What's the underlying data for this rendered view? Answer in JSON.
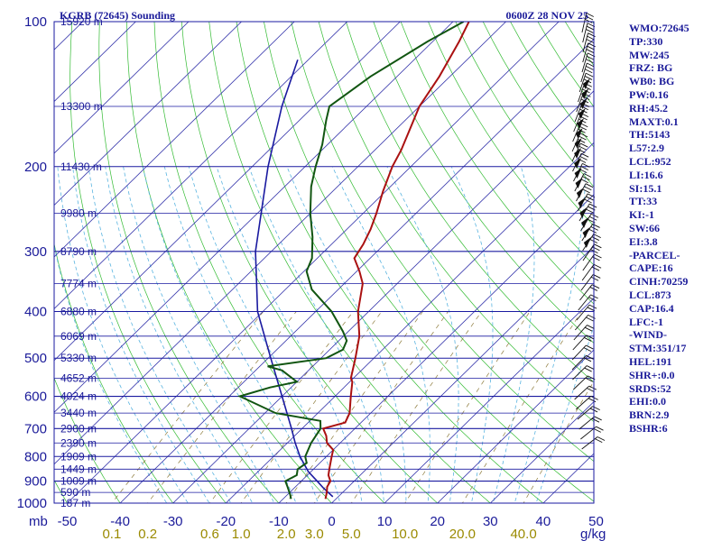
{
  "chart_data": {
    "type": "skew-t",
    "station_label": "KGRB (72645) Sounding",
    "time_label": "0600Z 28 NOV 25",
    "pressure_axis_unit": "mb",
    "pressure_ticks": [
      "100",
      "200",
      "300",
      "400",
      "500",
      "600",
      "700",
      "800",
      "900",
      "1000"
    ],
    "temperature_ticks": [
      "-50",
      "-40",
      "-30",
      "-20",
      "-10",
      "0",
      "10",
      "20",
      "30",
      "40",
      "50"
    ],
    "mixing_ratio_unit": "g/kg",
    "mixing_ratio_ticks": [
      "0.1",
      "0.2",
      "0.6",
      "1.0",
      "2.0",
      "3.0",
      "5.0",
      "10.0",
      "20.0",
      "40.0"
    ],
    "height_labels": [
      {
        "p": 100,
        "text": "15920 m"
      },
      {
        "p": 150,
        "text": "13300 m"
      },
      {
        "p": 200,
        "text": "11430 m"
      },
      {
        "p": 250,
        "text": "9980 m"
      },
      {
        "p": 300,
        "text": "8790 m"
      },
      {
        "p": 350,
        "text": "7774 m"
      },
      {
        "p": 400,
        "text": "6880 m"
      },
      {
        "p": 450,
        "text": "6069 m"
      },
      {
        "p": 500,
        "text": "5330 m"
      },
      {
        "p": 550,
        "text": "4652 m"
      },
      {
        "p": 600,
        "text": "4024 m"
      },
      {
        "p": 650,
        "text": "3440 m"
      },
      {
        "p": 700,
        "text": "2900 m"
      },
      {
        "p": 750,
        "text": "2390 m"
      },
      {
        "p": 800,
        "text": "1909 m"
      },
      {
        "p": 850,
        "text": "1449 m"
      },
      {
        "p": 900,
        "text": "1009 m"
      },
      {
        "p": 950,
        "text": "590 m"
      },
      {
        "p": 1000,
        "text": "187 m"
      }
    ],
    "temperature_profile": [
      {
        "p": 980,
        "t": -2.0
      },
      {
        "p": 950,
        "t": -3.0
      },
      {
        "p": 925,
        "t": -4.0
      },
      {
        "p": 900,
        "t": -4.5
      },
      {
        "p": 875,
        "t": -6.0
      },
      {
        "p": 850,
        "t": -7.0
      },
      {
        "p": 800,
        "t": -9.0
      },
      {
        "p": 775,
        "t": -10.0
      },
      {
        "p": 750,
        "t": -12.5
      },
      {
        "p": 725,
        "t": -14.0
      },
      {
        "p": 700,
        "t": -16.0
      },
      {
        "p": 680,
        "t": -13.0
      },
      {
        "p": 650,
        "t": -14.0
      },
      {
        "p": 600,
        "t": -17.0
      },
      {
        "p": 560,
        "t": -19.5
      },
      {
        "p": 550,
        "t": -20.5
      },
      {
        "p": 500,
        "t": -23.5
      },
      {
        "p": 450,
        "t": -27.0
      },
      {
        "p": 400,
        "t": -32.0
      },
      {
        "p": 350,
        "t": -36.5
      },
      {
        "p": 330,
        "t": -39.5
      },
      {
        "p": 310,
        "t": -43.0
      },
      {
        "p": 290,
        "t": -44.0
      },
      {
        "p": 270,
        "t": -45.5
      },
      {
        "p": 250,
        "t": -47.5
      },
      {
        "p": 225,
        "t": -50.5
      },
      {
        "p": 200,
        "t": -53.5
      },
      {
        "p": 185,
        "t": -55.0
      },
      {
        "p": 170,
        "t": -57.0
      },
      {
        "p": 150,
        "t": -60.0
      },
      {
        "p": 130,
        "t": -62.0
      },
      {
        "p": 110,
        "t": -65.0
      },
      {
        "p": 100,
        "t": -67.0
      }
    ],
    "dewpoint_profile": [
      {
        "p": 980,
        "t": -8.5
      },
      {
        "p": 960,
        "t": -9.5
      },
      {
        "p": 925,
        "t": -11.5
      },
      {
        "p": 900,
        "t": -13.0
      },
      {
        "p": 875,
        "t": -12.0
      },
      {
        "p": 850,
        "t": -13.0
      },
      {
        "p": 825,
        "t": -12.5
      },
      {
        "p": 800,
        "t": -14.0
      },
      {
        "p": 750,
        "t": -15.5
      },
      {
        "p": 700,
        "t": -16.5
      },
      {
        "p": 675,
        "t": -18.0
      },
      {
        "p": 650,
        "t": -28.0
      },
      {
        "p": 600,
        "t": -38.0
      },
      {
        "p": 575,
        "t": -34.0
      },
      {
        "p": 560,
        "t": -30.0
      },
      {
        "p": 530,
        "t": -35.0
      },
      {
        "p": 520,
        "t": -38.5
      },
      {
        "p": 500,
        "t": -29.0
      },
      {
        "p": 480,
        "t": -27.5
      },
      {
        "p": 460,
        "t": -28.5
      },
      {
        "p": 440,
        "t": -31.0
      },
      {
        "p": 400,
        "t": -37.0
      },
      {
        "p": 360,
        "t": -45.0
      },
      {
        "p": 330,
        "t": -49.5
      },
      {
        "p": 310,
        "t": -51.0
      },
      {
        "p": 280,
        "t": -55.0
      },
      {
        "p": 250,
        "t": -60.0
      },
      {
        "p": 220,
        "t": -65.0
      },
      {
        "p": 200,
        "t": -68.0
      },
      {
        "p": 180,
        "t": -71.0
      },
      {
        "p": 160,
        "t": -75.0
      },
      {
        "p": 150,
        "t": -77.0
      },
      {
        "p": 130,
        "t": -75.0
      },
      {
        "p": 110,
        "t": -71.0
      },
      {
        "p": 100,
        "t": -68.0
      }
    ],
    "parcel_profile": [
      {
        "p": 970,
        "t": -1.0
      },
      {
        "p": 930,
        "t": -4.5
      },
      {
        "p": 900,
        "t": -7.0
      },
      {
        "p": 860,
        "t": -10.5
      },
      {
        "p": 800,
        "t": -15.0
      },
      {
        "p": 750,
        "t": -18.5
      },
      {
        "p": 700,
        "t": -22.0
      },
      {
        "p": 600,
        "t": -30.0
      },
      {
        "p": 500,
        "t": -39.5
      },
      {
        "p": 400,
        "t": -51.0
      },
      {
        "p": 300,
        "t": -63.0
      },
      {
        "p": 200,
        "t": -77.0
      },
      {
        "p": 150,
        "t": -86.0
      },
      {
        "p": 120,
        "t": -92.0
      }
    ],
    "isotherm_color": "#3333aa",
    "isobar_color": "#1a1aa0",
    "dry_adiabat_color": "#33bb33",
    "moist_adiabat_color": "#5ab4e0",
    "mixing_ratio_color": "#8c7a3a",
    "temperature_color": "#aa1111",
    "dewpoint_color": "#115511",
    "parcel_color": "#1a1aa0"
  },
  "indices": [
    "WMO:72645",
    "TP:330",
    "MW:245",
    "FRZ: BG",
    "WB0: BG",
    "PW:0.16",
    "RH:45.2",
    "MAXT:0.1",
    "TH:5143",
    "L57:2.9",
    "LCL:952",
    "LI:16.6",
    "SI:15.1",
    "TT:33",
    "KI:-1",
    "SW:66",
    "EI:3.8",
    "-PARCEL-",
    "CAPE:16",
    "CINH:70259",
    "LCL:873",
    "CAP:16.4",
    "LFC:-1",
    "-WIND-",
    "STM:351/17",
    "HEL:191",
    "SHR+:0.0",
    "SRDS:52",
    "EHI:0.0",
    "BRN:2.9",
    "BSHR:6"
  ]
}
